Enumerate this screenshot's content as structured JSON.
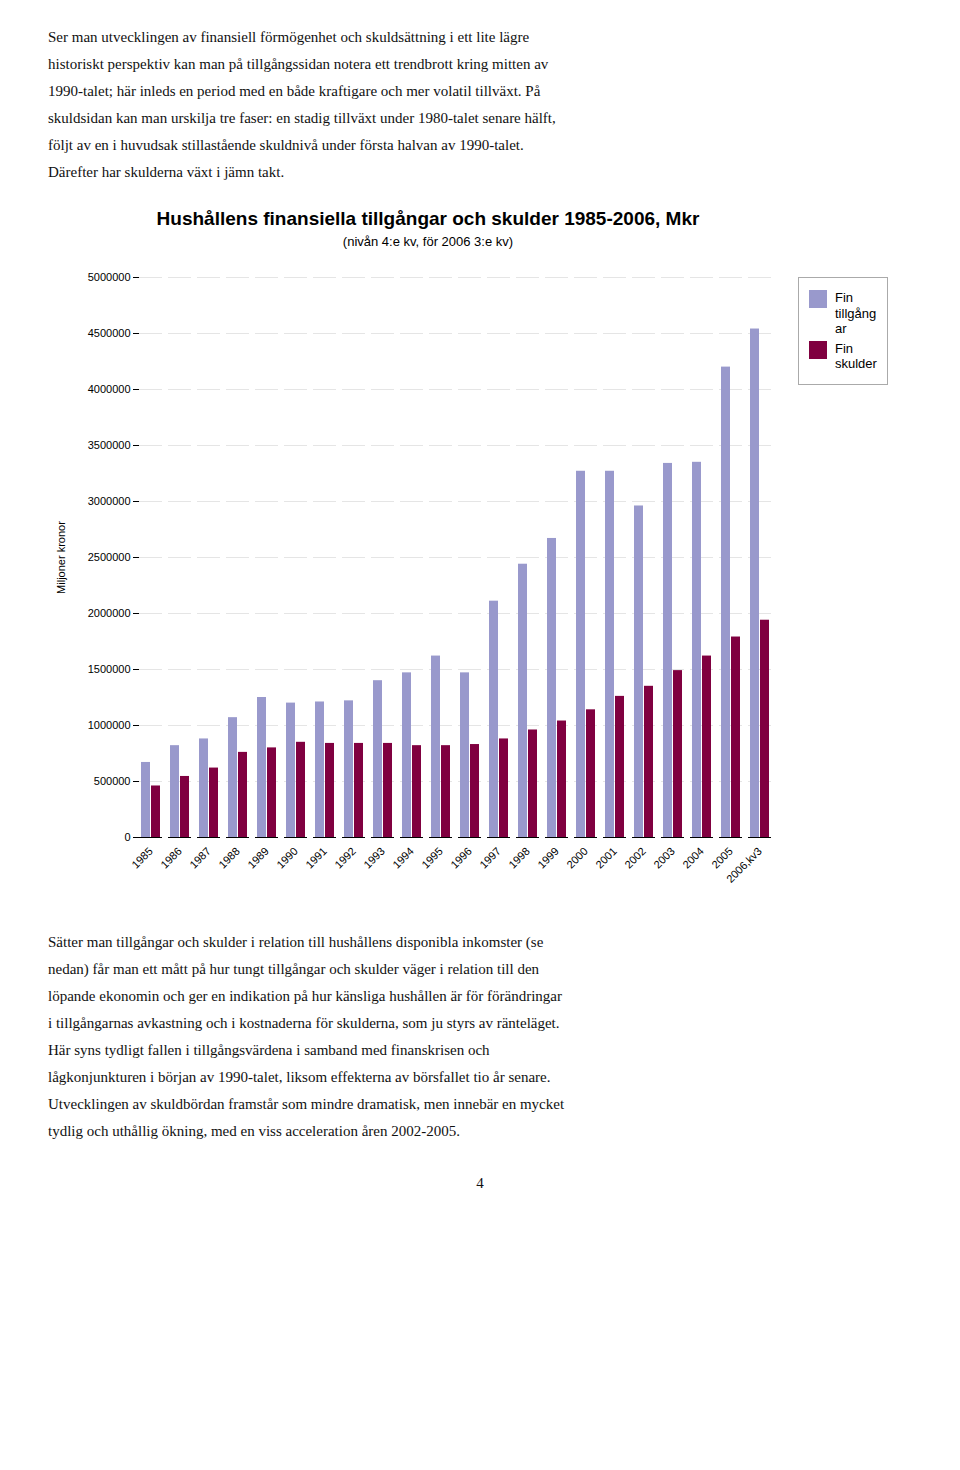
{
  "chart_data": {
    "type": "bar",
    "title": "Hushållens finansiella tillgångar och skulder 1985-2006, Mkr",
    "subtitle": "(nivån 4:e kv, för 2006 3:e kv)",
    "ylabel": "Miljoner kronor",
    "categories": [
      "1985",
      "1986",
      "1987",
      "1988",
      "1989",
      "1990",
      "1991",
      "1992",
      "1993",
      "1994",
      "1995",
      "1996",
      "1997",
      "1998",
      "1999",
      "2000",
      "2001",
      "2002",
      "2003",
      "2004",
      "2005",
      "2006,kv3"
    ],
    "series": [
      {
        "name": "Fin\ntillgång\nar",
        "color": "#9999cc",
        "values": [
          670000,
          820000,
          880000,
          1070000,
          1250000,
          1200000,
          1210000,
          1220000,
          1400000,
          1470000,
          1620000,
          1470000,
          2110000,
          2440000,
          2670000,
          3270000,
          3270000,
          2960000,
          3340000,
          3350000,
          4200000,
          4540000
        ]
      },
      {
        "name": "Fin\nskulder",
        "color": "#800040",
        "values": [
          460000,
          545000,
          620000,
          760000,
          800000,
          850000,
          840000,
          840000,
          840000,
          820000,
          820000,
          830000,
          880000,
          960000,
          1040000,
          1140000,
          1260000,
          1350000,
          1490000,
          1620000,
          1790000,
          1940000
        ]
      }
    ],
    "ylim": [
      0,
      5000000
    ],
    "yticks": [
      0,
      500000,
      1000000,
      1500000,
      2000000,
      2500000,
      3000000,
      3500000,
      4000000,
      4500000,
      5000000
    ],
    "grid": true,
    "legend": "right",
    "top_text": "Ser man utvecklingen av finansiell förmögenhet och skuldsättning i ett lite lägre\nhistoriskt perspektiv kan man på tillgångssidan notera ett trendbrott kring mitten av\n1990-talet; här inleds en period med en både kraftigare och mer volatil tillväxt. På\nskuldsidan kan man urskilja tre faser: en stadig tillväxt under 1980-talet senare hälft,\nföljt av en i huvudsak stillastående skuldnivå under första halvan av 1990-talet.\nDärefter har skulderna växt i jämn takt.",
    "bottom_text": [
      "Sätter man tillgångar och skulder i relation till hushållens disponibla inkomster (se",
      "nedan) får man ett mått på hur tungt tillgångar och skulder väger i relation till den",
      "löpande ekonomin och ger en indikation på hur känsliga hushållen är för förändringar",
      "i tillgångarnas avkastning och i kostnaderna för skulderna, som ju styrs av ränteläget.",
      "Här syns tydligt fallen i tillgångsvärdena i samband med finanskrisen och",
      "lågkonjunkturen i början av 1990-talet, liksom effekterna av börsfallet tio år senare.",
      "Utvecklingen av skuldbördan framstår som mindre dramatisk, men innebär en mycket",
      "tydlig och uthållig ökning, med en viss acceleration åren 2002-2005."
    ],
    "page_number": "4"
  }
}
